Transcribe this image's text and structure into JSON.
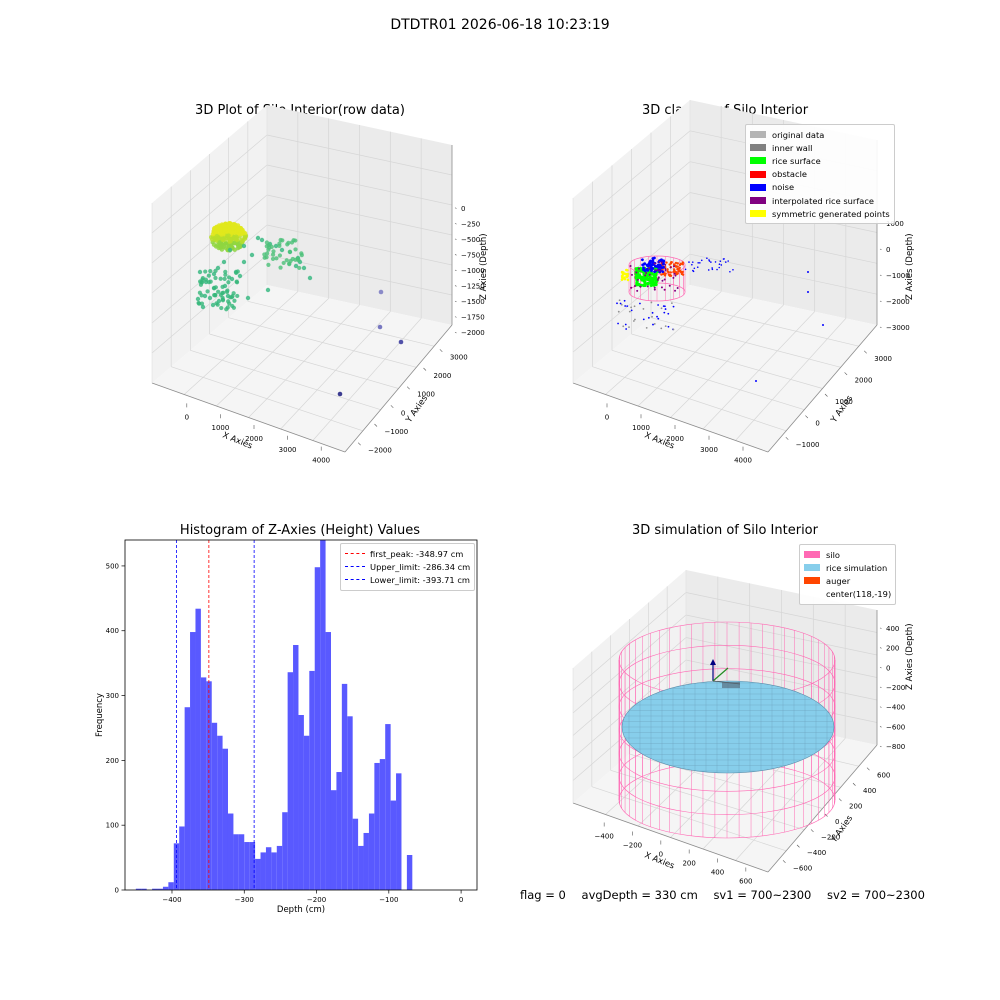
{
  "title": "DTDTR01 2026-06-18 10:23:19",
  "colors": {
    "silo": "#ff69b4",
    "rice_sim": "#87ceeb",
    "auger": "#ff4500",
    "hist_bar": "#5050ff"
  },
  "chart_data": [
    {
      "type": "scatter",
      "subtype": "3d",
      "title": "3D Plot of Silo Interior(row data)",
      "xlabel": "X Axies",
      "ylabel": "Y Axies",
      "zlabel": "Z Axies (Depth)",
      "x_ticks": [
        "0",
        "1000",
        "2000",
        "3000",
        "4000"
      ],
      "y_ticks": [
        "3000",
        "2000",
        "1000",
        "0",
        "−1000",
        "−2000"
      ],
      "z_ticks": [
        "0",
        "−250",
        "−500",
        "−750",
        "−1000",
        "−1250",
        "−1500",
        "−1750",
        "−2000"
      ],
      "outliers": [
        {
          "x": 3300,
          "y": 500,
          "z": -1500
        },
        {
          "x": 3500,
          "y": 1000,
          "z": -1850
        },
        {
          "x": 3200,
          "y": -900,
          "z": -1900
        }
      ]
    },
    {
      "type": "scatter",
      "subtype": "3d",
      "title": "3D classify of Silo Interior",
      "xlabel": "X Axies",
      "ylabel": "Y Axies",
      "zlabel": "Z Axies (Depth)",
      "x_ticks": [
        "0",
        "1000",
        "2000",
        "3000",
        "4000"
      ],
      "y_ticks": [
        "3000",
        "2000",
        "1000",
        "0",
        "−1000"
      ],
      "z_ticks": [
        "1000",
        "0",
        "−1000",
        "−2000",
        "−3000"
      ],
      "legend": [
        {
          "label": "original data",
          "color": "#b4b4b4"
        },
        {
          "label": "inner wall",
          "color": "#808080"
        },
        {
          "label": "rice surface",
          "color": "#00ff00"
        },
        {
          "label": "obstacle",
          "color": "#ff0000"
        },
        {
          "label": "noise",
          "color": "#0000ff"
        },
        {
          "label": "interpolated rice surface",
          "color": "#800080"
        },
        {
          "label": "symmetric generated points",
          "color": "#ffff00"
        }
      ]
    },
    {
      "type": "bar",
      "subtype": "histogram",
      "title": "Histogram of Z-Axies (Height) Values",
      "xlabel": "Depth (cm)",
      "ylabel": "Frequency",
      "xlim": [
        -465,
        22
      ],
      "ylim": [
        0,
        540
      ],
      "x_ticks": [
        -400,
        -300,
        -200,
        -100,
        0
      ],
      "y_ticks": [
        0,
        100,
        200,
        300,
        400,
        500
      ],
      "bin_start": -450,
      "bin_width": 7.5,
      "values": [
        2,
        2,
        0,
        2,
        2,
        5,
        12,
        72,
        98,
        282,
        398,
        434,
        328,
        322,
        258,
        238,
        218,
        118,
        86,
        86,
        74,
        74,
        48,
        58,
        66,
        58,
        68,
        120,
        336,
        378,
        270,
        238,
        338,
        498,
        580,
        398,
        154,
        182,
        318,
        268,
        110,
        68,
        88,
        118,
        196,
        202,
        256,
        138,
        180,
        0,
        54
      ],
      "legend": [
        {
          "label": "first_peak: -348.97 cm",
          "value": -348.97,
          "color": "#ff0000"
        },
        {
          "label": "Upper_limit: -286.34 cm",
          "value": -286.34,
          "color": "#0000ff"
        },
        {
          "label": "Lower_limit: -393.71 cm",
          "value": -393.71,
          "color": "#0000ff"
        }
      ]
    },
    {
      "type": "area",
      "subtype": "3d-surface",
      "title": "3D simulation of Silo Interior",
      "xlabel": "X Axies",
      "ylabel": "Y Axies",
      "zlabel": "Z Axies (Depth)",
      "x_ticks": [
        "−400",
        "−200",
        "0",
        "200",
        "400",
        "600"
      ],
      "y_ticks": [
        "600",
        "400",
        "200",
        "0",
        "−200",
        "−400",
        "−600"
      ],
      "z_ticks": [
        "400",
        "200",
        "0",
        "−200",
        "−400",
        "−600",
        "−800"
      ],
      "legend": [
        {
          "label": "silo",
          "color": "#ff69b4"
        },
        {
          "label": "rice simulation",
          "color": "#87ceeb"
        },
        {
          "label": "auger",
          "color": "#ff4500"
        },
        {
          "label": "center(118,-19)",
          "color": ""
        }
      ]
    }
  ],
  "footer": {
    "flag": "flag = 0",
    "avg": "avgDepth = 330 cm",
    "sv1": "sv1 = 700~2300",
    "sv2": "sv2 = 700~2300"
  }
}
